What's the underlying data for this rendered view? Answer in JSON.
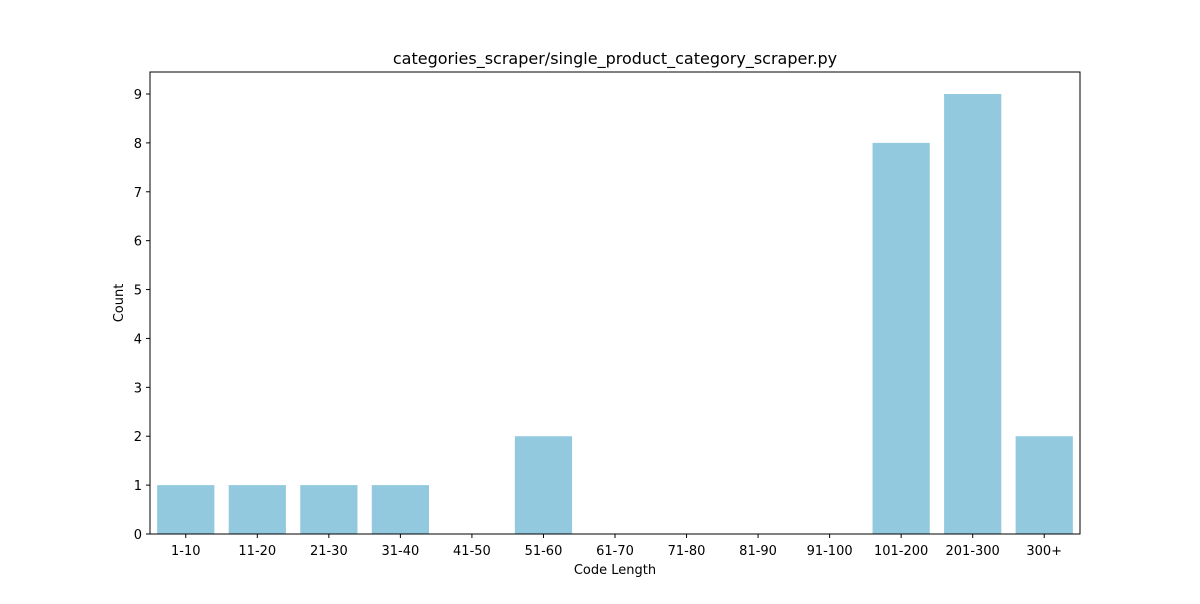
{
  "chart_data": {
    "type": "bar",
    "title": "categories_scraper/single_product_category_scraper.py",
    "xlabel": "Code Length",
    "ylabel": "Count",
    "categories": [
      "1-10",
      "11-20",
      "21-30",
      "31-40",
      "41-50",
      "51-60",
      "61-70",
      "71-80",
      "81-90",
      "91-100",
      "101-200",
      "201-300",
      "300+"
    ],
    "values": [
      1,
      1,
      1,
      1,
      0,
      2,
      0,
      0,
      0,
      0,
      8,
      9,
      2
    ],
    "ylim": [
      0,
      9.45
    ],
    "yticks": [
      0,
      1,
      2,
      3,
      4,
      5,
      6,
      7,
      8,
      9
    ],
    "bar_color": "#92c9df",
    "grid": false,
    "legend": "none"
  }
}
